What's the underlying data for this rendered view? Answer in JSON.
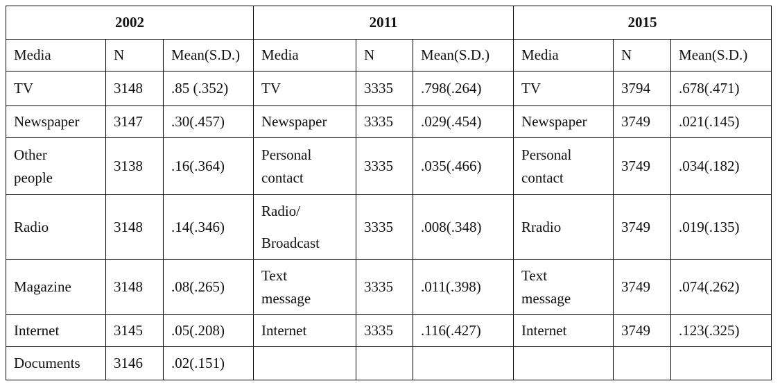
{
  "table": {
    "years": [
      "2002",
      "2011",
      "2015"
    ],
    "columns": [
      "Media",
      "N",
      "Mean(S.D.)",
      "Media",
      "N",
      "Mean(S.D.)",
      "Media",
      "N",
      "Mean(S.D.)"
    ],
    "rows": [
      [
        "TV",
        "3148",
        ".85 (.352)",
        "TV",
        "3335",
        ".798(.264)",
        "TV",
        "3794",
        ".678(.471)"
      ],
      [
        "Newspaper",
        "3147",
        ".30(.457)",
        "Newspaper",
        "3335",
        ".029(.454)",
        "Newspaper",
        "3749",
        ".021(.145)"
      ],
      [
        [
          "Other",
          "people"
        ],
        "3138",
        ".16(.364)",
        [
          "Personal",
          "contact"
        ],
        "3335",
        ".035(.466)",
        [
          "Personal",
          "contact"
        ],
        "3749",
        ".034(.182)"
      ],
      [
        "Radio",
        "3148",
        ".14(.346)",
        [
          "Radio/",
          "Broadcast"
        ],
        "3335",
        ".008(.348)",
        "Rradio",
        "3749",
        ".019(.135)"
      ],
      [
        "Magazine",
        "3148",
        ".08(.265)",
        [
          "Text",
          "message"
        ],
        "3335",
        ".011(.398)",
        [
          "Text",
          "message"
        ],
        "3749",
        ".074(.262)"
      ],
      [
        "Internet",
        "3145",
        ".05(.208)",
        "Internet",
        "3335",
        ".116(.427)",
        "Internet",
        "3749",
        ".123(.325)"
      ],
      [
        "Documents",
        "3146",
        ".02(.151)"
      ]
    ]
  }
}
